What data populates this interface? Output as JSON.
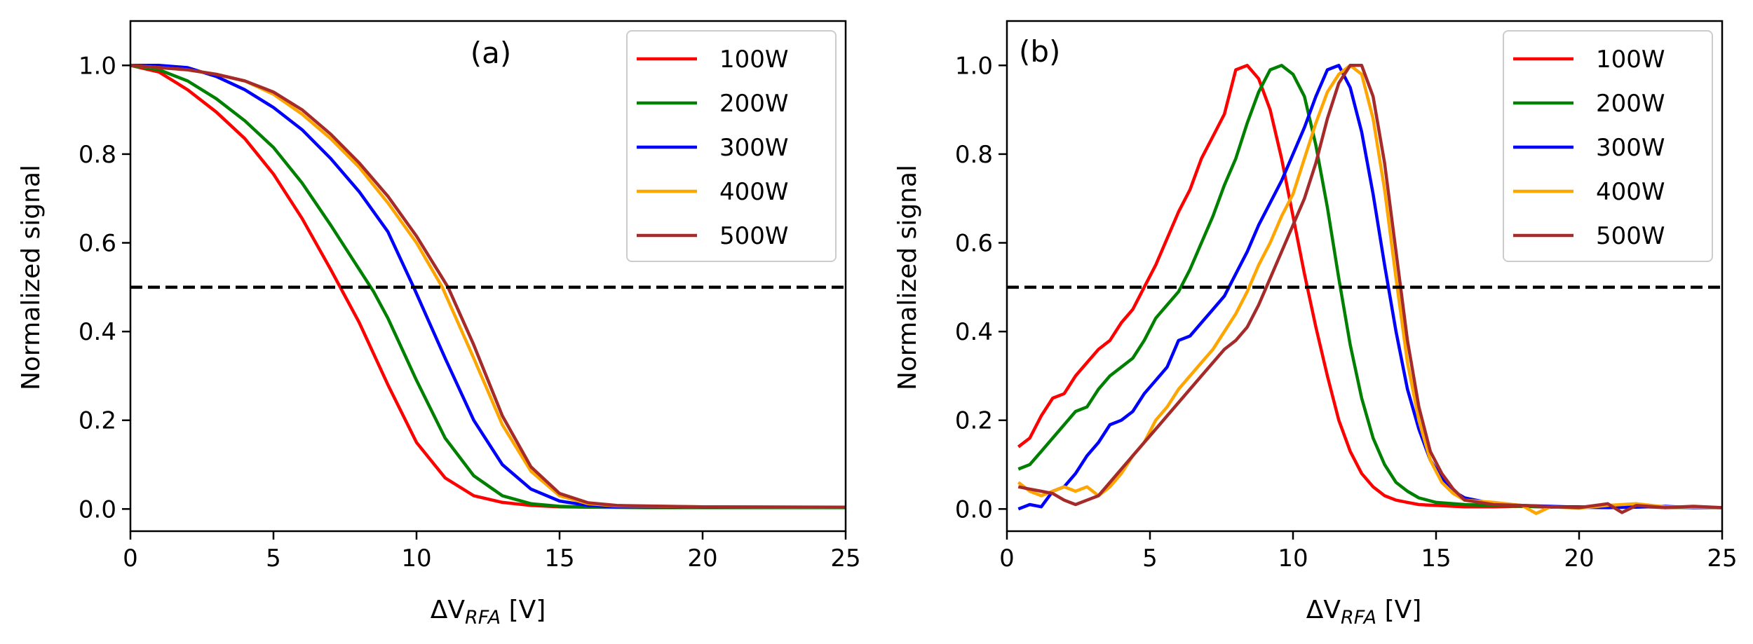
{
  "chart_data": [
    {
      "type": "line",
      "panel_label": "(a)",
      "xlabel_prefix": "ΔV",
      "xlabel_sub": "RFA",
      "xlabel_suffix": " [V]",
      "ylabel": "Normalized signal",
      "xlim": [
        0,
        25
      ],
      "ylim": [
        -0.05,
        1.1
      ],
      "xticks": [
        "0",
        "5",
        "10",
        "15",
        "20",
        "25"
      ],
      "yticks": [
        "0.0",
        "0.2",
        "0.4",
        "0.6",
        "0.8",
        "1.0"
      ],
      "reference_line": 0.5,
      "legend_position": "top-right",
      "series": [
        {
          "name": "100W",
          "color": "#ff0000",
          "x": [
            0,
            1,
            2,
            3,
            4,
            5,
            6,
            7,
            7.5,
            8,
            9,
            10,
            11,
            12,
            13,
            14,
            15,
            16,
            18,
            20,
            25
          ],
          "y": [
            1.0,
            0.985,
            0.945,
            0.895,
            0.835,
            0.755,
            0.655,
            0.54,
            0.48,
            0.42,
            0.28,
            0.15,
            0.07,
            0.03,
            0.015,
            0.008,
            0.005,
            0.004,
            0.004,
            0.004,
            0.004
          ]
        },
        {
          "name": "200W",
          "color": "#008000",
          "x": [
            0,
            1,
            2,
            3,
            4,
            5,
            6,
            7,
            8,
            8.5,
            9,
            10,
            11,
            12,
            13,
            14,
            15,
            16,
            18,
            20,
            25
          ],
          "y": [
            1.0,
            0.99,
            0.965,
            0.925,
            0.875,
            0.815,
            0.735,
            0.64,
            0.54,
            0.49,
            0.43,
            0.29,
            0.16,
            0.075,
            0.03,
            0.012,
            0.006,
            0.004,
            0.003,
            0.003,
            0.003
          ]
        },
        {
          "name": "300W",
          "color": "#0000ff",
          "x": [
            0,
            1,
            2,
            3,
            4,
            5,
            6,
            7,
            8,
            9,
            9.9,
            11,
            12,
            13,
            14,
            15,
            16,
            17,
            20,
            25
          ],
          "y": [
            1.0,
            1.0,
            0.995,
            0.975,
            0.945,
            0.905,
            0.855,
            0.79,
            0.715,
            0.625,
            0.5,
            0.34,
            0.2,
            0.1,
            0.045,
            0.018,
            0.008,
            0.005,
            0.004,
            0.004
          ]
        },
        {
          "name": "400W",
          "color": "#ffa500",
          "x": [
            0,
            1,
            2,
            3,
            4,
            5,
            6,
            7,
            8,
            9,
            10,
            10.9,
            12,
            13,
            14,
            15,
            16,
            17,
            20,
            25
          ],
          "y": [
            1.0,
            0.995,
            0.99,
            0.98,
            0.965,
            0.935,
            0.89,
            0.835,
            0.77,
            0.69,
            0.6,
            0.5,
            0.34,
            0.19,
            0.085,
            0.03,
            0.012,
            0.007,
            0.005,
            0.004
          ]
        },
        {
          "name": "500W",
          "color": "#a52a2a",
          "x": [
            0,
            1,
            2,
            3,
            4,
            5,
            6,
            7,
            8,
            9,
            10,
            11.1,
            12,
            13,
            14,
            15,
            16,
            17,
            20,
            25
          ],
          "y": [
            1.0,
            0.995,
            0.99,
            0.98,
            0.965,
            0.94,
            0.9,
            0.845,
            0.78,
            0.705,
            0.615,
            0.5,
            0.37,
            0.21,
            0.095,
            0.035,
            0.014,
            0.008,
            0.005,
            0.004
          ]
        }
      ]
    },
    {
      "type": "line",
      "panel_label": "(b)",
      "xlabel_prefix": "ΔV",
      "xlabel_sub": "RFA",
      "xlabel_suffix": " [V]",
      "ylabel": "Normalized signal",
      "xlim": [
        0,
        25
      ],
      "ylim": [
        -0.05,
        1.1
      ],
      "xticks": [
        "0",
        "5",
        "10",
        "15",
        "20",
        "25"
      ],
      "yticks": [
        "0.0",
        "0.2",
        "0.4",
        "0.6",
        "0.8",
        "1.0"
      ],
      "reference_line": 0.5,
      "legend_position": "top-right",
      "series": [
        {
          "name": "100W",
          "color": "#ff0000",
          "x": [
            0.4,
            0.8,
            1.2,
            1.6,
            2.0,
            2.4,
            2.8,
            3.2,
            3.6,
            4.0,
            4.4,
            4.8,
            5.2,
            5.6,
            6.0,
            6.4,
            6.8,
            7.2,
            7.6,
            8.0,
            8.4,
            8.8,
            9.2,
            9.6,
            10.0,
            10.4,
            10.8,
            11.2,
            11.6,
            12.0,
            12.4,
            12.8,
            13.2,
            13.6,
            14.0,
            14.4,
            15,
            16,
            17,
            18,
            19,
            20,
            21,
            22,
            23,
            24,
            25
          ],
          "y": [
            0.14,
            0.16,
            0.21,
            0.25,
            0.26,
            0.3,
            0.33,
            0.36,
            0.38,
            0.42,
            0.45,
            0.5,
            0.55,
            0.61,
            0.67,
            0.72,
            0.79,
            0.84,
            0.89,
            0.99,
            1.0,
            0.97,
            0.9,
            0.79,
            0.66,
            0.53,
            0.41,
            0.3,
            0.2,
            0.13,
            0.08,
            0.05,
            0.03,
            0.02,
            0.015,
            0.01,
            0.008,
            0.005,
            0.005,
            0.006,
            0.004,
            0.005,
            0.004,
            0.006,
            0.003,
            0.004,
            0.003
          ]
        },
        {
          "name": "200W",
          "color": "#008000",
          "x": [
            0.4,
            0.8,
            1.2,
            1.6,
            2.0,
            2.4,
            2.8,
            3.2,
            3.6,
            4.0,
            4.4,
            4.8,
            5.2,
            5.6,
            6.0,
            6.4,
            6.8,
            7.2,
            7.6,
            8.0,
            8.4,
            8.8,
            9.2,
            9.6,
            10.0,
            10.4,
            10.8,
            11.2,
            11.6,
            12.0,
            12.4,
            12.8,
            13.2,
            13.6,
            14.0,
            14.4,
            15,
            16,
            17,
            18,
            19,
            20,
            21,
            22,
            23,
            24,
            25
          ],
          "y": [
            0.09,
            0.1,
            0.13,
            0.16,
            0.19,
            0.22,
            0.23,
            0.27,
            0.3,
            0.32,
            0.34,
            0.38,
            0.43,
            0.46,
            0.49,
            0.54,
            0.6,
            0.66,
            0.73,
            0.79,
            0.87,
            0.94,
            0.99,
            1.0,
            0.98,
            0.93,
            0.82,
            0.68,
            0.52,
            0.37,
            0.25,
            0.16,
            0.1,
            0.06,
            0.04,
            0.025,
            0.015,
            0.01,
            0.008,
            0.006,
            0.005,
            0.005,
            0.004,
            0.006,
            0.004,
            0.003,
            0.003
          ]
        },
        {
          "name": "300W",
          "color": "#0000ff",
          "x": [
            0.4,
            0.8,
            1.2,
            1.6,
            2.0,
            2.4,
            2.8,
            3.2,
            3.6,
            4.0,
            4.4,
            4.8,
            5.2,
            5.6,
            6.0,
            6.4,
            6.8,
            7.2,
            7.6,
            8.0,
            8.4,
            8.8,
            9.2,
            9.6,
            10.0,
            10.4,
            10.8,
            11.2,
            11.6,
            12.0,
            12.4,
            12.8,
            13.2,
            13.6,
            14.0,
            14.4,
            14.8,
            15.2,
            15.6,
            16,
            17,
            18,
            19,
            20,
            21,
            22,
            23,
            24,
            25
          ],
          "y": [
            0.0,
            0.01,
            0.005,
            0.04,
            0.05,
            0.08,
            0.12,
            0.15,
            0.19,
            0.2,
            0.22,
            0.26,
            0.29,
            0.32,
            0.38,
            0.39,
            0.42,
            0.45,
            0.48,
            0.53,
            0.58,
            0.64,
            0.69,
            0.74,
            0.8,
            0.86,
            0.93,
            0.99,
            1.0,
            0.95,
            0.85,
            0.71,
            0.55,
            0.4,
            0.27,
            0.18,
            0.11,
            0.07,
            0.04,
            0.025,
            0.012,
            0.008,
            0.006,
            0.004,
            0.003,
            0.004,
            0.006,
            0.003,
            0.003
          ]
        },
        {
          "name": "400W",
          "color": "#ffa500",
          "x": [
            0.4,
            0.8,
            1.2,
            1.6,
            2.0,
            2.4,
            2.8,
            3.2,
            3.6,
            4.0,
            4.4,
            4.8,
            5.2,
            5.6,
            6.0,
            6.4,
            6.8,
            7.2,
            7.6,
            8.0,
            8.4,
            8.8,
            9.2,
            9.6,
            10.0,
            10.4,
            10.8,
            11.2,
            11.6,
            12.0,
            12.4,
            12.8,
            13.2,
            13.6,
            14.0,
            14.4,
            14.8,
            15.2,
            15.6,
            16,
            17,
            18,
            18.5,
            19,
            20,
            21,
            22,
            23,
            24,
            25
          ],
          "y": [
            0.06,
            0.04,
            0.03,
            0.04,
            0.05,
            0.04,
            0.05,
            0.03,
            0.05,
            0.08,
            0.12,
            0.15,
            0.2,
            0.23,
            0.27,
            0.3,
            0.33,
            0.36,
            0.4,
            0.44,
            0.49,
            0.55,
            0.6,
            0.66,
            0.71,
            0.79,
            0.87,
            0.94,
            0.98,
            1.0,
            0.98,
            0.88,
            0.72,
            0.52,
            0.33,
            0.2,
            0.11,
            0.06,
            0.035,
            0.02,
            0.015,
            0.008,
            -0.01,
            0.005,
            0.002,
            0.008,
            0.012,
            0.005,
            0.004,
            0.003
          ]
        },
        {
          "name": "500W",
          "color": "#a52a2a",
          "x": [
            0.4,
            0.8,
            1.2,
            1.6,
            2.0,
            2.4,
            2.8,
            3.2,
            3.6,
            4.0,
            4.4,
            4.8,
            5.2,
            5.6,
            6.0,
            6.4,
            6.8,
            7.2,
            7.6,
            8.0,
            8.4,
            8.8,
            9.2,
            9.6,
            10.0,
            10.4,
            10.8,
            11.2,
            11.6,
            12.0,
            12.4,
            12.8,
            13.2,
            13.6,
            14.0,
            14.4,
            14.8,
            15.2,
            15.6,
            16,
            17,
            18,
            19,
            20,
            21,
            21.5,
            22,
            23,
            24,
            25
          ],
          "y": [
            0.05,
            0.045,
            0.04,
            0.035,
            0.02,
            0.01,
            0.02,
            0.03,
            0.06,
            0.09,
            0.12,
            0.15,
            0.18,
            0.21,
            0.24,
            0.27,
            0.3,
            0.33,
            0.36,
            0.38,
            0.41,
            0.46,
            0.52,
            0.58,
            0.64,
            0.7,
            0.78,
            0.88,
            0.96,
            1.0,
            1.0,
            0.93,
            0.78,
            0.58,
            0.38,
            0.23,
            0.13,
            0.08,
            0.045,
            0.02,
            0.01,
            0.008,
            0.005,
            0.003,
            0.012,
            -0.008,
            0.008,
            0.003,
            0.006,
            0.003
          ]
        }
      ]
    }
  ]
}
